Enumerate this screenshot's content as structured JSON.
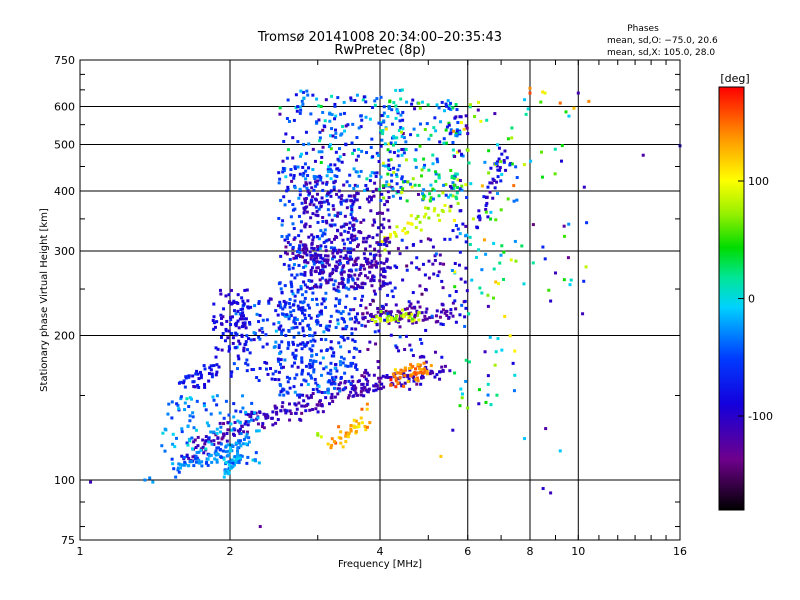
{
  "chart_data": {
    "type": "scatter",
    "title": "Tromsø 20141008 20:34:00–20:35:43",
    "subtitle": "RwPretec (8p)",
    "xlabel": "Frequency [MHz]",
    "ylabel": "Stationary phase Virtual Height [km]",
    "x_scale": "log",
    "y_scale": "log",
    "xlim": [
      1,
      16
    ],
    "ylim": [
      75,
      750
    ],
    "x_ticks": [
      1,
      2,
      4,
      6,
      8,
      10,
      16
    ],
    "y_ticks": [
      75,
      100,
      200,
      300,
      400,
      500,
      600,
      750
    ],
    "grid": true,
    "phase_info": {
      "heading": "Phases",
      "line1": "mean, sd,O: −75.0, 20.6",
      "line2": "mean, sd,X: 105.0, 28.0"
    },
    "colorbar": {
      "label": "[deg]",
      "range": [
        -180,
        180
      ],
      "ticks": [
        100,
        0,
        -100
      ]
    },
    "traces": [
      {
        "x": [
          1.62,
          1.72,
          1.84,
          1.96,
          2.08,
          2.2,
          2.35,
          2.5,
          2.68,
          2.85,
          3.0,
          3.2,
          3.45,
          3.7,
          4.0
        ],
        "y": [
          112,
          116,
          121,
          125,
          129,
          133,
          135,
          138,
          141,
          144,
          147,
          151,
          156,
          160,
          164
        ],
        "phase": -110,
        "spread": 0.055
      },
      {
        "x": [
          1.55,
          1.65,
          1.78,
          1.92,
          2.05,
          2.2
        ],
        "y": [
          105,
          108,
          111,
          114,
          117,
          120
        ],
        "phase": -30,
        "spread": 0.03
      },
      {
        "x": [
          1.95,
          2.0,
          2.05,
          2.1
        ],
        "y": [
          104,
          107,
          110,
          113
        ],
        "phase": -20,
        "spread": 0.02
      },
      {
        "x": [
          3.2,
          3.4,
          3.6,
          3.85
        ],
        "y": [
          118,
          124,
          130,
          138
        ],
        "phase": 130,
        "spread": 0.05
      },
      {
        "x": [
          3.5,
          3.8,
          4.1,
          4.4,
          4.7,
          5.0,
          5.5
        ],
        "y": [
          150,
          156,
          160,
          163,
          165,
          167,
          170
        ],
        "phase": -110,
        "spread": 0.04
      },
      {
        "x": [
          4.2,
          4.4,
          4.6,
          4.8,
          5.0
        ],
        "y": [
          160,
          164,
          168,
          170,
          172
        ],
        "phase": 140,
        "spread": 0.04
      },
      {
        "x": [
          3.5,
          3.8,
          4.1,
          4.4,
          4.8,
          5.3,
          5.6
        ],
        "y": [
          218,
          220,
          221,
          222,
          222,
          221,
          220
        ],
        "phase": -115,
        "spread": 0.04
      },
      {
        "x": [
          3.9,
          4.2,
          4.5,
          4.8
        ],
        "y": [
          218,
          219,
          220,
          220
        ],
        "phase": 80,
        "spread": 0.03
      },
      {
        "x": [
          2.6,
          2.8,
          3.0,
          3.3,
          3.6,
          4.0
        ],
        "y": [
          300,
          296,
          290,
          285,
          282,
          280
        ],
        "phase": -115,
        "spread": 0.05
      },
      {
        "x": [
          4.0,
          4.5,
          5.0,
          5.6
        ],
        "y": [
          305,
          330,
          360,
          390
        ],
        "phase": 90,
        "spread": 0.05
      },
      {
        "x": [
          6.3,
          6.6,
          6.9,
          7.2
        ],
        "y": [
          340,
          390,
          440,
          480
        ],
        "phase": -90,
        "spread": 0.06
      },
      {
        "x": [
          1.6,
          1.7,
          1.8,
          1.9
        ],
        "y": [
          160,
          163,
          167,
          170
        ],
        "phase": -80,
        "spread": 0.05
      }
    ],
    "clusters": [
      {
        "xmin": 2.5,
        "xmax": 3.6,
        "ymin": 150,
        "ymax": 450,
        "n": 450,
        "phase": -60,
        "phase_sd": 30
      },
      {
        "xmin": 2.8,
        "xmax": 4.2,
        "ymin": 250,
        "ymax": 420,
        "n": 300,
        "phase": -110,
        "phase_sd": 15
      },
      {
        "xmin": 2.5,
        "xmax": 4.5,
        "ymin": 400,
        "ymax": 650,
        "n": 230,
        "phase": -40,
        "phase_sd": 70
      },
      {
        "xmin": 4.0,
        "xmax": 5.8,
        "ymin": 380,
        "ymax": 620,
        "n": 170,
        "phase": 0,
        "phase_sd": 90
      },
      {
        "xmin": 2.0,
        "xmax": 3.4,
        "ymin": 160,
        "ymax": 240,
        "n": 180,
        "phase": -60,
        "phase_sd": 40
      },
      {
        "xmin": 1.85,
        "xmax": 2.2,
        "ymin": 185,
        "ymax": 250,
        "n": 80,
        "phase": -90,
        "phase_sd": 20
      },
      {
        "xmin": 3.6,
        "xmax": 5.4,
        "ymin": 180,
        "ymax": 320,
        "n": 120,
        "phase": -100,
        "phase_sd": 40
      },
      {
        "xmin": 5.6,
        "xmax": 7.5,
        "ymin": 140,
        "ymax": 620,
        "n": 110,
        "phase": 40,
        "phase_sd": 90
      },
      {
        "xmin": 7.5,
        "xmax": 10.5,
        "ymin": 200,
        "ymax": 650,
        "n": 35,
        "phase": 0,
        "phase_sd": 110
      },
      {
        "xmin": 1.45,
        "xmax": 2.3,
        "ymin": 108,
        "ymax": 150,
        "n": 120,
        "phase": -30,
        "phase_sd": 30
      },
      {
        "xmin": 5.5,
        "xmax": 6.0,
        "ymin": 200,
        "ymax": 620,
        "n": 60,
        "phase": -80,
        "phase_sd": 50
      }
    ],
    "points": [
      {
        "x": 1.05,
        "y": 99,
        "phase": -110
      },
      {
        "x": 1.35,
        "y": 100,
        "phase": -30
      },
      {
        "x": 1.38,
        "y": 101,
        "phase": -30
      },
      {
        "x": 1.4,
        "y": 99,
        "phase": -20
      },
      {
        "x": 2.3,
        "y": 80,
        "phase": -130
      },
      {
        "x": 8.5,
        "y": 96,
        "phase": -100
      },
      {
        "x": 8.8,
        "y": 94,
        "phase": -110
      },
      {
        "x": 9.2,
        "y": 115,
        "phase": -10
      },
      {
        "x": 10.2,
        "y": 222,
        "phase": -110
      },
      {
        "x": 8.8,
        "y": 236,
        "phase": -100
      },
      {
        "x": 13.5,
        "y": 475,
        "phase": -120
      },
      {
        "x": 16.0,
        "y": 497,
        "phase": -100
      },
      {
        "x": 10.0,
        "y": 640,
        "phase": -115
      },
      {
        "x": 10.5,
        "y": 615,
        "phase": 140
      },
      {
        "x": 9.2,
        "y": 610,
        "phase": 150
      },
      {
        "x": 9.8,
        "y": 595,
        "phase": 120
      },
      {
        "x": 8.0,
        "y": 655,
        "phase": 140
      },
      {
        "x": 8.0,
        "y": 640,
        "phase": 160
      },
      {
        "x": 7.8,
        "y": 620,
        "phase": -10
      },
      {
        "x": 7.8,
        "y": 122,
        "phase": -10
      },
      {
        "x": 5.3,
        "y": 112,
        "phase": 120
      },
      {
        "x": 5.6,
        "y": 127,
        "phase": -100
      },
      {
        "x": 8.6,
        "y": 128,
        "phase": -120
      },
      {
        "x": 6.5,
        "y": 185,
        "phase": -110
      },
      {
        "x": 6.6,
        "y": 165,
        "phase": -100
      },
      {
        "x": 7.4,
        "y": 175,
        "phase": -90
      },
      {
        "x": 6.6,
        "y": 230,
        "phase": -115
      },
      {
        "x": 9.0,
        "y": 270,
        "phase": -110
      },
      {
        "x": 6.3,
        "y": 590,
        "phase": -115
      },
      {
        "x": 6.8,
        "y": 580,
        "phase": -115
      },
      {
        "x": 3.0,
        "y": 125,
        "phase": 80
      },
      {
        "x": 3.05,
        "y": 123,
        "phase": 90
      },
      {
        "x": 3.0,
        "y": 124,
        "phase": 70
      }
    ]
  }
}
